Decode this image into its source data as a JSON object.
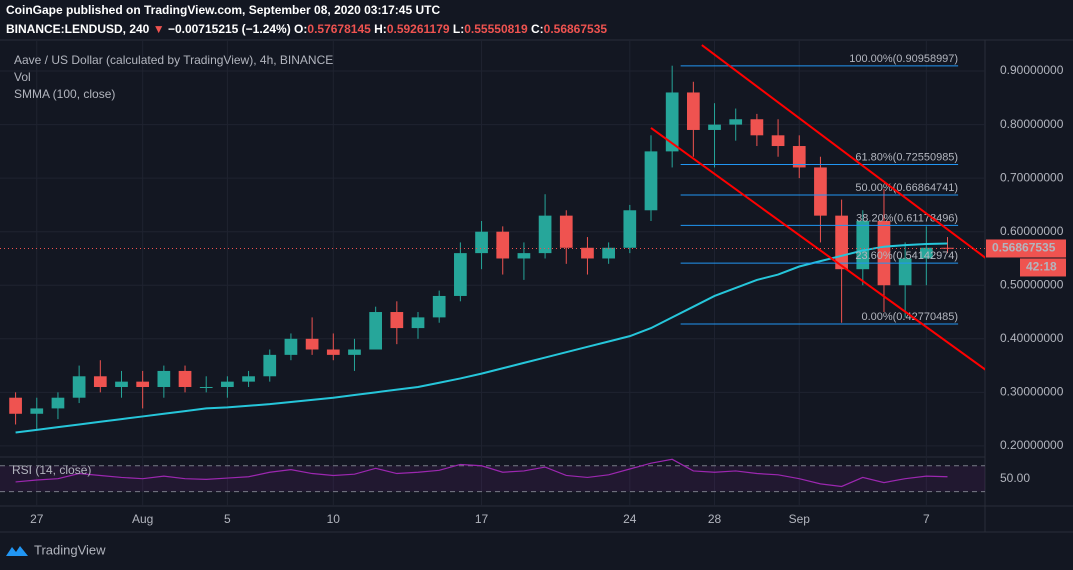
{
  "header": {
    "publisher": "CoinGape published on TradingView.com, September 08, 2020 03:17:45 UTC",
    "symbol": "BINANCE:LENDUSD, 240",
    "change": "−0.00715215 (−1.24%)",
    "ohlc": [
      {
        "label": "O:",
        "value": "0.57678145"
      },
      {
        "label": "H:",
        "value": "0.59261179"
      },
      {
        "label": "L:",
        "value": "0.55550819"
      },
      {
        "label": "C:",
        "value": "0.56867535"
      }
    ]
  },
  "chart_data": [
    {
      "type": "candlestick",
      "title": "Aave / US Dollar (calculated by TradingView), 4h, BINANCE",
      "volume_label": "Vol",
      "categories": [
        null,
        "27",
        null,
        null,
        null,
        null,
        "Aug",
        null,
        null,
        null,
        "5",
        null,
        null,
        null,
        null,
        "10",
        null,
        null,
        null,
        null,
        null,
        null,
        "17",
        null,
        null,
        null,
        null,
        null,
        null,
        "24",
        null,
        null,
        null,
        "28",
        null,
        null,
        null,
        "Sep",
        null,
        null,
        null,
        null,
        null,
        "7",
        null
      ],
      "open": [
        0.29,
        0.26,
        0.27,
        0.29,
        0.33,
        0.31,
        0.32,
        0.31,
        0.34,
        0.31,
        0.31,
        0.32,
        0.33,
        0.37,
        0.4,
        0.38,
        0.37,
        0.38,
        0.45,
        0.42,
        0.44,
        0.48,
        0.56,
        0.6,
        0.55,
        0.56,
        0.63,
        0.57,
        0.55,
        0.57,
        0.64,
        0.75,
        0.86,
        0.79,
        0.8,
        0.81,
        0.78,
        0.76,
        0.72,
        0.63,
        0.53,
        0.62,
        0.5,
        0.55,
        0.57
      ],
      "high": [
        0.3,
        0.29,
        0.3,
        0.35,
        0.36,
        0.34,
        0.34,
        0.35,
        0.35,
        0.33,
        0.33,
        0.34,
        0.38,
        0.41,
        0.44,
        0.41,
        0.4,
        0.46,
        0.47,
        0.45,
        0.49,
        0.58,
        0.62,
        0.61,
        0.58,
        0.67,
        0.64,
        0.59,
        0.58,
        0.65,
        0.78,
        0.91,
        0.88,
        0.84,
        0.83,
        0.82,
        0.81,
        0.78,
        0.74,
        0.66,
        0.64,
        0.68,
        0.58,
        0.61,
        0.59
      ],
      "low": [
        0.24,
        0.23,
        0.25,
        0.28,
        0.3,
        0.29,
        0.27,
        0.29,
        0.3,
        0.3,
        0.29,
        0.31,
        0.32,
        0.36,
        0.37,
        0.36,
        0.34,
        0.38,
        0.39,
        0.4,
        0.43,
        0.47,
        0.53,
        0.52,
        0.51,
        0.55,
        0.54,
        0.52,
        0.54,
        0.56,
        0.62,
        0.72,
        0.74,
        0.72,
        0.77,
        0.76,
        0.74,
        0.7,
        0.58,
        0.43,
        0.5,
        0.45,
        0.44,
        0.5,
        0.56
      ],
      "close": [
        0.26,
        0.27,
        0.29,
        0.33,
        0.31,
        0.32,
        0.31,
        0.34,
        0.31,
        0.31,
        0.32,
        0.33,
        0.37,
        0.4,
        0.38,
        0.37,
        0.38,
        0.45,
        0.42,
        0.44,
        0.48,
        0.56,
        0.6,
        0.55,
        0.56,
        0.63,
        0.57,
        0.55,
        0.57,
        0.64,
        0.75,
        0.86,
        0.79,
        0.8,
        0.81,
        0.78,
        0.76,
        0.72,
        0.63,
        0.53,
        0.62,
        0.5,
        0.55,
        0.57,
        0.56867535
      ],
      "up_color": "#26a69a",
      "down_color": "#ef5350",
      "ylim": [
        0.183,
        0.958
      ],
      "yticks": [
        {
          "value": 0.2,
          "label": "0.20000000"
        },
        {
          "value": 0.3,
          "label": "0.30000000"
        },
        {
          "value": 0.4,
          "label": "0.40000000"
        },
        {
          "value": 0.5,
          "label": "0.50000000"
        },
        {
          "value": 0.6,
          "label": "0.60000000"
        },
        {
          "value": 0.7,
          "label": "0.70000000"
        },
        {
          "value": 0.8,
          "label": "0.80000000"
        },
        {
          "value": 0.9,
          "label": "0.90000000"
        }
      ],
      "grid": true,
      "smma": {
        "name": "SMMA (100, close)",
        "color": "#26c6da",
        "values": [
          0.225,
          0.23,
          0.235,
          0.24,
          0.245,
          0.25,
          0.255,
          0.26,
          0.265,
          0.27,
          0.272,
          0.275,
          0.278,
          0.282,
          0.286,
          0.29,
          0.295,
          0.3,
          0.305,
          0.31,
          0.318,
          0.326,
          0.335,
          0.345,
          0.355,
          0.365,
          0.375,
          0.385,
          0.395,
          0.405,
          0.42,
          0.44,
          0.46,
          0.48,
          0.495,
          0.51,
          0.52,
          0.535,
          0.545,
          0.555,
          0.565,
          0.572,
          0.575,
          0.577,
          0.578
        ]
      },
      "last_price": {
        "value": 0.56867535,
        "label": "0.56867535"
      },
      "countdown": "42:18",
      "fib_color": "#2196f3",
      "fib_x": [
        31.9,
        45
      ],
      "fib": [
        {
          "value": 0.90958997,
          "label": "100.00%(0.90958997)"
        },
        {
          "value": 0.72550985,
          "label": "61.80%(0.72550985)"
        },
        {
          "value": 0.66864741,
          "label": "50.00%(0.66864741)"
        },
        {
          "value": 0.61178496,
          "label": "38.20%(0.61178496)"
        },
        {
          "value": 0.54142974,
          "label": "23.60%(0.54142974)"
        },
        {
          "value": 0.42770485,
          "label": "0.00%(0.42770485)"
        }
      ],
      "trendlines": [
        {
          "color": "#ff0000",
          "x": [
            32.9,
            46.3
          ],
          "y": [
            0.9485,
            0.551
          ]
        },
        {
          "color": "#ff0000",
          "x": [
            30.5,
            46.3
          ],
          "y": [
            0.7937,
            0.342
          ]
        }
      ]
    },
    {
      "type": "line",
      "name": "RSI (14, close)",
      "color": "#9c27b0",
      "values": [
        45,
        48,
        50,
        58,
        55,
        52,
        50,
        54,
        50,
        49,
        51,
        53,
        60,
        64,
        58,
        55,
        57,
        66,
        58,
        60,
        63,
        72,
        70,
        60,
        62,
        68,
        55,
        52,
        56,
        65,
        74,
        80,
        62,
        60,
        62,
        58,
        56,
        50,
        42,
        38,
        52,
        44,
        50,
        54,
        53
      ],
      "ylim": [
        14,
        82
      ],
      "yticks": [
        {
          "value": 50,
          "label": "50.00"
        }
      ],
      "bands": [
        30,
        70
      ]
    }
  ],
  "footer": {
    "brand": "TradingView"
  }
}
